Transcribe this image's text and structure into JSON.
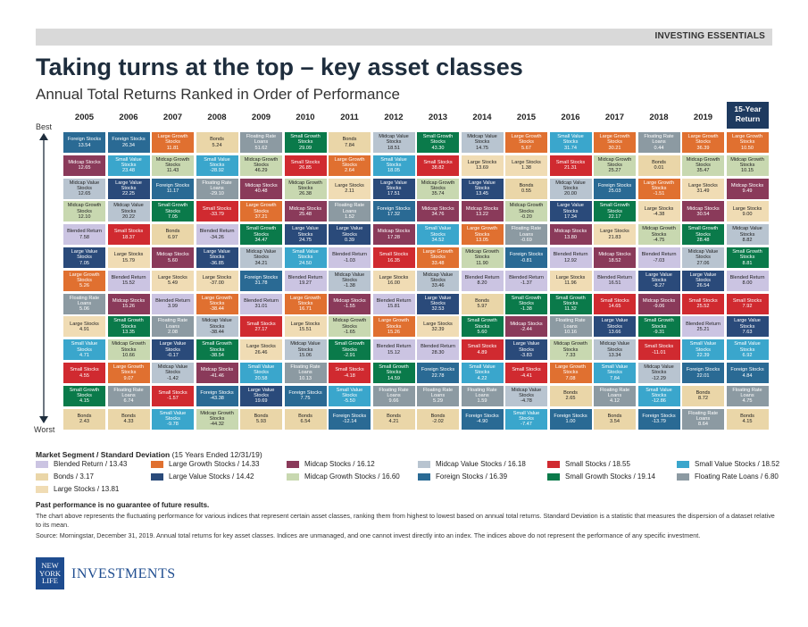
{
  "header": {
    "banner": "INVESTING ESSENTIALS",
    "title": "Taking turns at the top – key asset classes",
    "subtitle": "Annual Total Returns Ranked in Order of Performance"
  },
  "axis": {
    "best": "Best",
    "worst": "Worst"
  },
  "years": [
    "2005",
    "2006",
    "2007",
    "2008",
    "2009",
    "2010",
    "2011",
    "2012",
    "2013",
    "2014",
    "2015",
    "2016",
    "2017",
    "2018",
    "2019"
  ],
  "fifteen_year_label": "15-Year Return",
  "colors": {
    "BR": "#cbc4e2",
    "BO": "#ead6a8",
    "LG": "#e07030",
    "LV": "#2a4a7a",
    "MC": "#8a3a5a",
    "MG": "#c8d8b0",
    "MV": "#b8c4d0",
    "FS": "#2a6a94",
    "SC": "#d02a30",
    "SG": "#0a7a4a",
    "SV": "#3aa6cc",
    "FL": "#8c9aa2",
    "LS": "#f0dcb4"
  },
  "text_colors": {
    "BR": "#222",
    "BO": "#222",
    "LG": "#fff",
    "LV": "#fff",
    "MC": "#fff",
    "MG": "#222",
    "MV": "#222",
    "FS": "#fff",
    "SC": "#fff",
    "SG": "#fff",
    "SV": "#fff",
    "FL": "#fff",
    "LS": "#222"
  },
  "names": {
    "BR": "Blended Return",
    "BO": "Bonds",
    "LG": "Large Growth Stocks",
    "LV": "Large Value Stocks",
    "MC": "Midcap Stocks",
    "MG": "Midcap Growth Stocks",
    "MV": "Midcap Value Stocks",
    "FS": "Foreign Stocks",
    "SC": "Small Stocks",
    "SG": "Small Growth Stocks",
    "SV": "Small Value Stocks",
    "FL": "Floating Rate Loans",
    "LS": "Large Stocks"
  },
  "chart_data": {
    "type": "table",
    "title": "Annual Total Returns Ranked in Order of Performance",
    "columns": [
      "2005",
      "2006",
      "2007",
      "2008",
      "2009",
      "2010",
      "2011",
      "2012",
      "2013",
      "2014",
      "2015",
      "2016",
      "2017",
      "2018",
      "2019",
      "15-Year Return"
    ],
    "rows": [
      [
        [
          "FS",
          "13.54"
        ],
        [
          "FS",
          "26.34"
        ],
        [
          "LG",
          "11.81"
        ],
        [
          "BO",
          "5.24"
        ],
        [
          "FL",
          "51.62"
        ],
        [
          "SG",
          "29.09"
        ],
        [
          "BO",
          "7.84"
        ],
        [
          "MV",
          "18.51"
        ],
        [
          "SG",
          "43.30"
        ],
        [
          "MV",
          "14.75"
        ],
        [
          "LG",
          "5.67"
        ],
        [
          "SV",
          "31.74"
        ],
        [
          "LG",
          "30.21"
        ],
        [
          "FL",
          "0.44"
        ],
        [
          "LG",
          "36.39"
        ],
        [
          "LG",
          "10.50"
        ]
      ],
      [
        [
          "MC",
          "12.65"
        ],
        [
          "SV",
          "23.48"
        ],
        [
          "MG",
          "11.43"
        ],
        [
          "SV",
          "-28.92"
        ],
        [
          "MG",
          "46.29"
        ],
        [
          "SC",
          "26.85"
        ],
        [
          "LG",
          "2.64"
        ],
        [
          "SV",
          "18.05"
        ],
        [
          "SC",
          "38.82"
        ],
        [
          "LS",
          "13.69"
        ],
        [
          "LS",
          "1.38"
        ],
        [
          "SC",
          "21.31"
        ],
        [
          "MG",
          "25.27"
        ],
        [
          "BO",
          "0.01"
        ],
        [
          "MG",
          "35.47"
        ],
        [
          "MG",
          "10.15"
        ]
      ],
      [
        [
          "MV",
          "12.65"
        ],
        [
          "LV",
          "22.25"
        ],
        [
          "FS",
          "11.17"
        ],
        [
          "FL",
          "-29.10"
        ],
        [
          "MC",
          "40.48"
        ],
        [
          "MG",
          "26.38"
        ],
        [
          "LS",
          "2.11"
        ],
        [
          "LV",
          "17.51"
        ],
        [
          "MG",
          "35.74"
        ],
        [
          "LV",
          "13.45"
        ],
        [
          "BO",
          "0.55"
        ],
        [
          "MV",
          "20.00"
        ],
        [
          "FS",
          "25.03"
        ],
        [
          "LG",
          "-1.51"
        ],
        [
          "LS",
          "31.49"
        ],
        [
          "MC",
          "9.49"
        ]
      ],
      [
        [
          "MG",
          "12.10"
        ],
        [
          "MV",
          "20.22"
        ],
        [
          "SG",
          "7.05"
        ],
        [
          "SC",
          "-33.79"
        ],
        [
          "LG",
          "37.21"
        ],
        [
          "MC",
          "25.48"
        ],
        [
          "FL",
          "1.52"
        ],
        [
          "FS",
          "17.32"
        ],
        [
          "MC",
          "34.76"
        ],
        [
          "MC",
          "13.22"
        ],
        [
          "MG",
          "-0.20"
        ],
        [
          "LV",
          "17.34"
        ],
        [
          "SG",
          "22.17"
        ],
        [
          "LS",
          "-4.38"
        ],
        [
          "MC",
          "30.54"
        ],
        [
          "LS",
          "9.00"
        ]
      ],
      [
        [
          "BR",
          "7.58"
        ],
        [
          "SC",
          "18.37"
        ],
        [
          "BO",
          "6.97"
        ],
        [
          "BR",
          "-34.26"
        ],
        [
          "SG",
          "34.47"
        ],
        [
          "LV",
          "24.75"
        ],
        [
          "LV",
          "0.39"
        ],
        [
          "MC",
          "17.28"
        ],
        [
          "SV",
          "34.52"
        ],
        [
          "LG",
          "13.05"
        ],
        [
          "FL",
          "-0.69"
        ],
        [
          "MC",
          "13.80"
        ],
        [
          "LS",
          "21.83"
        ],
        [
          "MG",
          "-4.75"
        ],
        [
          "SG",
          "28.48"
        ],
        [
          "MV",
          "8.82"
        ]
      ],
      [
        [
          "LV",
          "7.05"
        ],
        [
          "LS",
          "15.79"
        ],
        [
          "MC",
          "5.60"
        ],
        [
          "LV",
          "-36.85"
        ],
        [
          "MV",
          "34.21"
        ],
        [
          "SV",
          "24.50"
        ],
        [
          "BR",
          "-1.03"
        ],
        [
          "SC",
          "16.35"
        ],
        [
          "LG",
          "33.48"
        ],
        [
          "MG",
          "11.90"
        ],
        [
          "FS",
          "-0.81"
        ],
        [
          "BR",
          "12.92"
        ],
        [
          "MC",
          "18.52"
        ],
        [
          "BR",
          "-7.03"
        ],
        [
          "MV",
          "27.06"
        ],
        [
          "SG",
          "8.81"
        ]
      ],
      [
        [
          "LG",
          "5.26"
        ],
        [
          "BR",
          "15.52"
        ],
        [
          "LS",
          "5.49"
        ],
        [
          "LS",
          "-37.00"
        ],
        [
          "FS",
          "31.78"
        ],
        [
          "BR",
          "19.27"
        ],
        [
          "MV",
          "-1.38"
        ],
        [
          "LS",
          "16.00"
        ],
        [
          "MV",
          "33.46"
        ],
        [
          "BR",
          "8.20"
        ],
        [
          "BR",
          "-1.37"
        ],
        [
          "LS",
          "11.96"
        ],
        [
          "BR",
          "16.51"
        ],
        [
          "LV",
          "-8.27"
        ],
        [
          "LV",
          "26.54"
        ],
        [
          "BR",
          "8.00"
        ]
      ],
      [
        [
          "FL",
          "5.06"
        ],
        [
          "MC",
          "15.26"
        ],
        [
          "BR",
          "3.99"
        ],
        [
          "LG",
          "-38.44"
        ],
        [
          "BR",
          "31.01"
        ],
        [
          "LG",
          "16.71"
        ],
        [
          "MC",
          "-1.55"
        ],
        [
          "BR",
          "15.81"
        ],
        [
          "LV",
          "32.53"
        ],
        [
          "BO",
          "5.97"
        ],
        [
          "SG",
          "-1.38"
        ],
        [
          "SG",
          "11.32"
        ],
        [
          "SC",
          "14.65"
        ],
        [
          "MC",
          "-9.06"
        ],
        [
          "SC",
          "25.52"
        ],
        [
          "SC",
          "7.92"
        ]
      ],
      [
        [
          "LS",
          "4.91"
        ],
        [
          "SG",
          "13.35"
        ],
        [
          "FL",
          "2.08"
        ],
        [
          "MV",
          "-38.44"
        ],
        [
          "SC",
          "27.17"
        ],
        [
          "LS",
          "15.51"
        ],
        [
          "MG",
          "-1.65"
        ],
        [
          "LG",
          "15.26"
        ],
        [
          "LS",
          "32.39"
        ],
        [
          "SG",
          "5.60"
        ],
        [
          "MC",
          "-2.44"
        ],
        [
          "FL",
          "10.16"
        ],
        [
          "LV",
          "13.66"
        ],
        [
          "SG",
          "-9.31"
        ],
        [
          "BR",
          "25.21"
        ],
        [
          "LV",
          "7.63"
        ]
      ],
      [
        [
          "SV",
          "4.71"
        ],
        [
          "MG",
          "10.66"
        ],
        [
          "LV",
          "-0.17"
        ],
        [
          "SG",
          "-38.54"
        ],
        [
          "LS",
          "26.46"
        ],
        [
          "MV",
          "15.06"
        ],
        [
          "SG",
          "-2.91"
        ],
        [
          "BR",
          "15.12"
        ],
        [
          "BR",
          "28.30"
        ],
        [
          "SC",
          "4.89"
        ],
        [
          "LV",
          "-3.83"
        ],
        [
          "MG",
          "7.33"
        ],
        [
          "MV",
          "13.34"
        ],
        [
          "SC",
          "-11.01"
        ],
        [
          "SV",
          "22.39"
        ],
        [
          "SV",
          "6.92"
        ]
      ],
      [
        [
          "SC",
          "4.55"
        ],
        [
          "LG",
          "9.07"
        ],
        [
          "MV",
          "-1.42"
        ],
        [
          "MC",
          "-41.46"
        ],
        [
          "SV",
          "20.58"
        ],
        [
          "FL",
          "10.13"
        ],
        [
          "SC",
          "-4.18"
        ],
        [
          "SG",
          "14.59"
        ],
        [
          "FS",
          "22.78"
        ],
        [
          "SV",
          "4.22"
        ],
        [
          "SC",
          "-4.41"
        ],
        [
          "LG",
          "7.08"
        ],
        [
          "SV",
          "7.84"
        ],
        [
          "MV",
          "-12.29"
        ],
        [
          "FS",
          "22.01"
        ],
        [
          "FS",
          "4.84"
        ]
      ],
      [
        [
          "SG",
          "4.15"
        ],
        [
          "FL",
          "6.74"
        ],
        [
          "SC",
          "-1.57"
        ],
        [
          "FS",
          "-43.38"
        ],
        [
          "LV",
          "19.69"
        ],
        [
          "FS",
          "7.75"
        ],
        [
          "SV",
          "-5.50"
        ],
        [
          "FL",
          "9.66"
        ],
        [
          "FL",
          "5.29"
        ],
        [
          "FL",
          "1.59"
        ],
        [
          "MV",
          "-4.78"
        ],
        [
          "BO",
          "2.65"
        ],
        [
          "FL",
          "4.12"
        ],
        [
          "SV",
          "-12.86"
        ],
        [
          "BO",
          "8.72"
        ],
        [
          "FL",
          "4.75"
        ]
      ],
      [
        [
          "BO",
          "2.43"
        ],
        [
          "BO",
          "4.33"
        ],
        [
          "SV",
          "-9.78"
        ],
        [
          "MG",
          "-44.32"
        ],
        [
          "BO",
          "5.93"
        ],
        [
          "BO",
          "6.54"
        ],
        [
          "FS",
          "-12.14"
        ],
        [
          "BO",
          "4.21"
        ],
        [
          "BO",
          "-2.02"
        ],
        [
          "FS",
          "-4.90"
        ],
        [
          "SV",
          "-7.47"
        ],
        [
          "FS",
          "1.00"
        ],
        [
          "BO",
          "3.54"
        ],
        [
          "FS",
          "-13.79"
        ],
        [
          "FL",
          "8.64"
        ],
        [
          "BO",
          "4.15"
        ]
      ]
    ]
  },
  "legend": {
    "title": "Market Segment / Standard Deviation",
    "title_note": "(15 Years Ended 12/31/19)",
    "items": [
      {
        "key": "BR",
        "label": "Blended Return / 13.43"
      },
      {
        "key": "LG",
        "label": "Large Growth Stocks / 14.33"
      },
      {
        "key": "MC",
        "label": "Midcap Stocks / 16.12"
      },
      {
        "key": "MV",
        "label": "Midcap Value Stocks / 16.18"
      },
      {
        "key": "SC",
        "label": "Small Stocks / 18.55"
      },
      {
        "key": "SV",
        "label": "Small Value Stocks / 18.52"
      },
      {
        "key": "BO",
        "label": "Bonds / 3.17"
      },
      {
        "key": "LV",
        "label": "Large Value Stocks / 14.42"
      },
      {
        "key": "MG",
        "label": "Midcap Growth Stocks / 16.60"
      },
      {
        "key": "FS",
        "label": "Foreign Stocks / 16.39"
      },
      {
        "key": "SG",
        "label": "Small Growth Stocks / 19.14"
      },
      {
        "key": "FL",
        "label": "Floating Rate Loans / 6.80"
      },
      {
        "key": "LS",
        "label": "Large Stocks / 13.81"
      }
    ]
  },
  "footer": {
    "past": "Past performance is no guarantee of future results.",
    "desc": "The chart above represents the fluctuating performance for various indices that represent certain asset classes, ranking them from highest to lowest based on annual total returns. Standard Deviation is a statistic that measures the dispersion of a dataset relative to its mean.",
    "source": "Source: Morningstar, December 31, 2019. Annual total returns for key asset classes. Indices are unmanaged, and one cannot invest directly into an index. The indices above do not represent the performance of any specific investment.",
    "logo": "NEW YORK LIFE",
    "brand": "INVESTMENTS"
  }
}
